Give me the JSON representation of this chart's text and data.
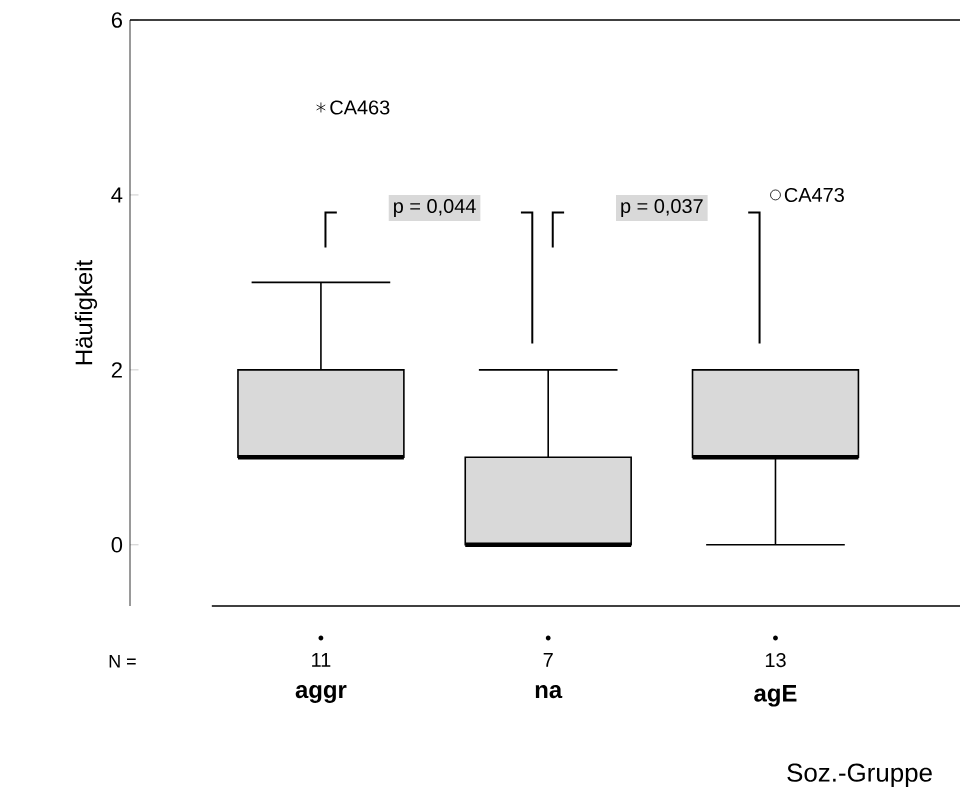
{
  "chart_data": {
    "type": "box",
    "xlabel": "Soz.-Gruppe",
    "ylabel": "Häufigkeit",
    "categories": [
      "aggr",
      "na",
      "agE"
    ],
    "series": [
      {
        "color": "#d9d9d9",
        "boxes": [
          {
            "low": 1,
            "q1": 1,
            "median": 1,
            "q3": 2,
            "high": 3,
            "outliers": [
              5
            ]
          },
          {
            "low": 0,
            "q1": 0,
            "median": 0,
            "q3": 1,
            "high": 2
          },
          {
            "low": 0,
            "q1": 1,
            "median": 1,
            "q3": 2,
            "high": 2,
            "outliers": [
              4
            ]
          }
        ]
      }
    ],
    "ylim": [
      -0.7,
      6
    ],
    "yticks": [
      0,
      2,
      4,
      6
    ],
    "grid": false,
    "annotations": [
      "CA463",
      "CA473",
      "p = 0,044",
      "p = 0,037",
      "N =",
      "11",
      "7",
      "13"
    ]
  }
}
